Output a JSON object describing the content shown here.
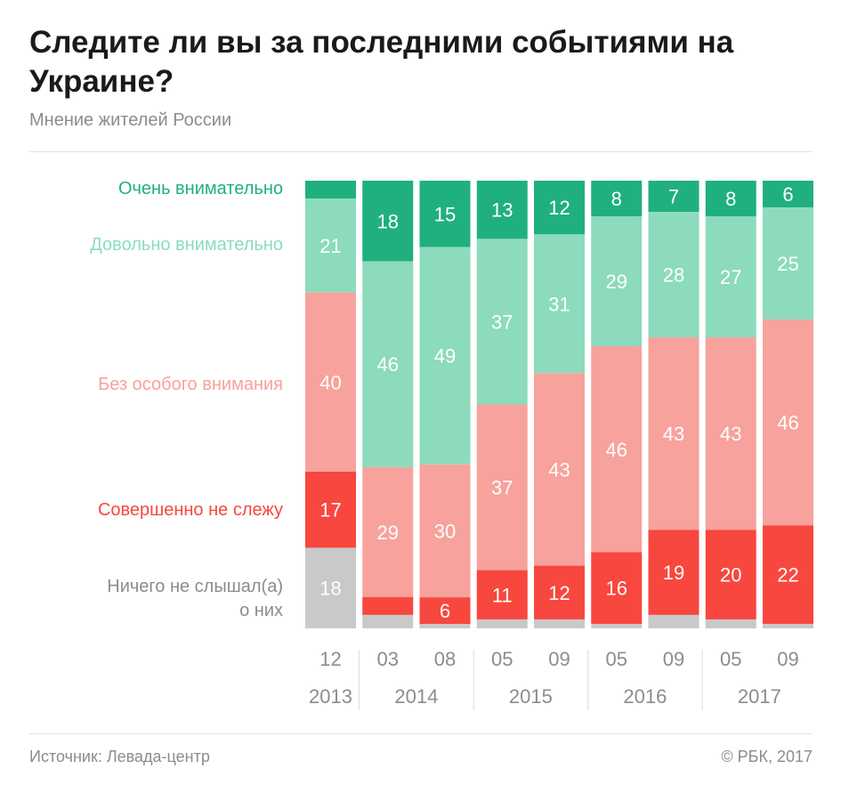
{
  "header": {
    "title": "Следите ли вы за последними событиями на Украине?",
    "subtitle": "Мнение жителей России"
  },
  "footer": {
    "source": "Источник: Левада-центр",
    "copyright": "© РБК, 2017"
  },
  "colors": {
    "very": "#20b07f",
    "fairly": "#8cdbbd",
    "notmuch": "#f7a29c",
    "none": "#f8473e",
    "never": "#c9c9c9",
    "value_text": "#ffffff",
    "axis_text": "#8c8c8c"
  },
  "legend": [
    {
      "key": "very",
      "label": "Очень внимательно"
    },
    {
      "key": "fairly",
      "label": "Довольно внимательно"
    },
    {
      "key": "notmuch",
      "label": "Без особого внимания"
    },
    {
      "key": "none",
      "label": "Совершенно не слежу"
    },
    {
      "key": "never",
      "label": "Ничего не слышал(а)",
      "label2": "о них"
    }
  ],
  "chart_data": {
    "type": "bar",
    "stacked": true,
    "normalized_100": true,
    "title": "Следите ли вы за последними событиями на Украине?",
    "subtitle": "Мнение жителей России",
    "categories": [
      "12",
      "03",
      "08",
      "05",
      "09",
      "05",
      "09",
      "05",
      "09"
    ],
    "year_groups": [
      {
        "year": "2013",
        "count": 1
      },
      {
        "year": "2014",
        "count": 2
      },
      {
        "year": "2015",
        "count": 2
      },
      {
        "year": "2016",
        "count": 2
      },
      {
        "year": "2017",
        "count": 2
      }
    ],
    "series": [
      {
        "name": "Очень внимательно",
        "key": "very",
        "values": [
          4,
          18,
          15,
          13,
          12,
          8,
          7,
          8,
          6
        ]
      },
      {
        "name": "Довольно внимательно",
        "key": "fairly",
        "values": [
          21,
          46,
          49,
          37,
          31,
          29,
          28,
          27,
          25
        ]
      },
      {
        "name": "Без особого внимания",
        "key": "notmuch",
        "values": [
          40,
          29,
          30,
          37,
          43,
          46,
          43,
          43,
          46
        ]
      },
      {
        "name": "Совершенно не слежу",
        "key": "none",
        "values": [
          17,
          4,
          6,
          11,
          12,
          16,
          19,
          20,
          22
        ]
      },
      {
        "name": "Ничего не слышал(а) о них",
        "key": "never",
        "values": [
          18,
          3,
          1,
          2,
          2,
          1,
          3,
          2,
          1
        ]
      }
    ],
    "min_label_value": 5
  }
}
